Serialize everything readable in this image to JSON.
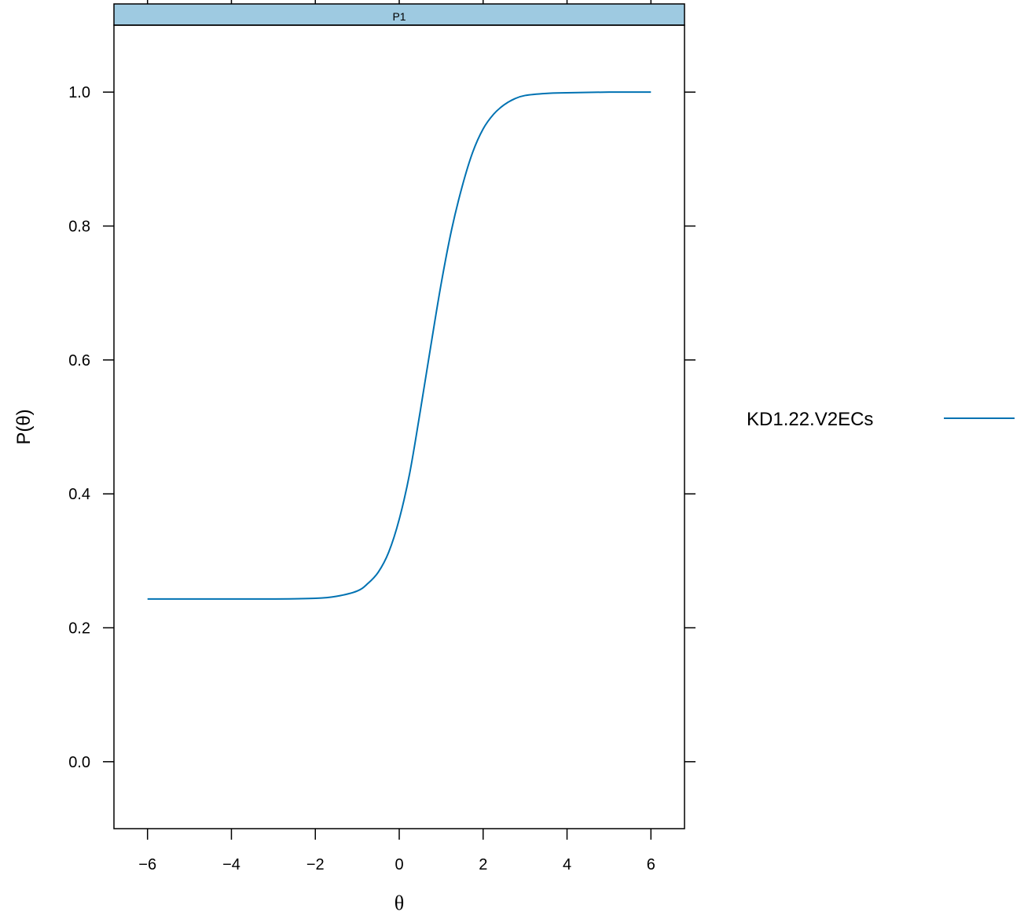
{
  "chart_data": {
    "type": "line",
    "panel": "P1",
    "xlabel": "θ",
    "ylabel": "P(θ)",
    "xlim": [
      -6.8,
      6.8
    ],
    "ylim": [
      -0.1,
      1.1
    ],
    "x_ticks": [
      -6,
      -4,
      -2,
      0,
      2,
      4,
      6
    ],
    "x_tick_labels": [
      "−6",
      "−4",
      "−2",
      "0",
      "2",
      "4",
      "6"
    ],
    "y_ticks": [
      0.0,
      0.2,
      0.4,
      0.6,
      0.8,
      1.0
    ],
    "y_tick_labels": [
      "0.0",
      "0.2",
      "0.4",
      "0.6",
      "0.8",
      "1.0"
    ],
    "grid": false,
    "legend_position": "right",
    "series": [
      {
        "name": "KD1.22.V2ECs",
        "color": "#0072b2",
        "x": [
          -6,
          -5,
          -4,
          -3,
          -2,
          -1.5,
          -1,
          -0.75,
          -0.5,
          -0.25,
          0,
          0.25,
          0.5,
          0.75,
          1,
          1.25,
          1.5,
          1.75,
          2,
          2.25,
          2.5,
          2.75,
          3,
          3.5,
          4,
          5,
          6
        ],
        "y": [
          0.243,
          0.243,
          0.243,
          0.243,
          0.244,
          0.247,
          0.255,
          0.266,
          0.283,
          0.313,
          0.362,
          0.431,
          0.523,
          0.62,
          0.714,
          0.795,
          0.859,
          0.91,
          0.945,
          0.967,
          0.981,
          0.99,
          0.995,
          0.998,
          0.999,
          1.0,
          1.0
        ]
      }
    ],
    "strip_color": "#9ecae1"
  }
}
